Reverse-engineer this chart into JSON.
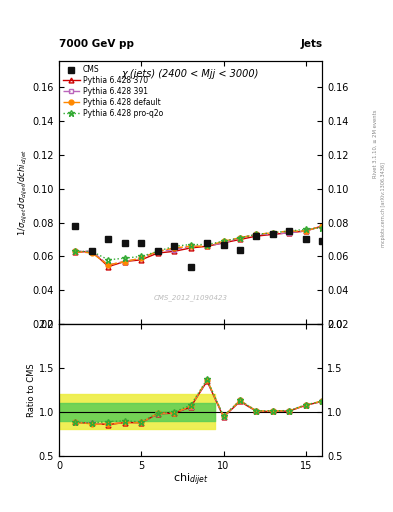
{
  "title_main": "χ (jets) (2400 < Mjj < 3000)",
  "header_left": "7000 GeV pp",
  "header_right": "Jets",
  "watermark": "CMS_2012_I1090423",
  "rivet_label": "Rivet 3.1.10, ≥ 2M events",
  "mcplots_label": "mcplots.cern.ch [arXiv:1306.3436]",
  "xlabel": "chi$_{dijet}$",
  "ylabel_ratio": "Ratio to CMS",
  "ylim_main": [
    0.02,
    0.175
  ],
  "ylim_ratio": [
    0.5,
    2.0
  ],
  "xlim": [
    0,
    16
  ],
  "yticks_main": [
    0.02,
    0.04,
    0.06,
    0.08,
    0.1,
    0.12,
    0.14,
    0.16
  ],
  "yticks_ratio": [
    0.5,
    1.0,
    1.5,
    2.0
  ],
  "xticks": [
    0,
    5,
    10,
    15
  ],
  "cms_x": [
    1,
    2,
    3,
    4,
    5,
    6,
    7,
    8,
    9,
    10,
    11,
    12,
    13,
    14,
    15,
    16
  ],
  "cms_y": [
    0.078,
    0.063,
    0.07,
    0.068,
    0.068,
    0.063,
    0.066,
    0.054,
    0.068,
    0.067,
    0.064,
    0.072,
    0.073,
    0.075,
    0.07,
    0.069
  ],
  "p370_x": [
    1,
    2,
    3,
    4,
    5,
    6,
    7,
    8,
    9,
    10,
    11,
    12,
    13,
    14,
    15,
    16
  ],
  "p370_y": [
    0.0625,
    0.063,
    0.054,
    0.057,
    0.058,
    0.062,
    0.063,
    0.065,
    0.066,
    0.068,
    0.07,
    0.072,
    0.073,
    0.074,
    0.075,
    0.078
  ],
  "p391_x": [
    1,
    2,
    3,
    4,
    5,
    6,
    7,
    8,
    9,
    10,
    11,
    12,
    13,
    14,
    15,
    16
  ],
  "p391_y": [
    0.063,
    0.063,
    0.055,
    0.057,
    0.059,
    0.063,
    0.064,
    0.066,
    0.066,
    0.068,
    0.071,
    0.073,
    0.073,
    0.074,
    0.075,
    0.078
  ],
  "pdef_x": [
    1,
    2,
    3,
    4,
    5,
    6,
    7,
    8,
    9,
    10,
    11,
    12,
    13,
    14,
    15,
    16
  ],
  "pdef_y": [
    0.063,
    0.062,
    0.055,
    0.057,
    0.059,
    0.063,
    0.065,
    0.066,
    0.066,
    0.069,
    0.071,
    0.073,
    0.074,
    0.075,
    0.075,
    0.078
  ],
  "pq2o_x": [
    1,
    2,
    3,
    4,
    5,
    6,
    7,
    8,
    9,
    10,
    11,
    12,
    13,
    14,
    15,
    16
  ],
  "pq2o_y": [
    0.063,
    0.063,
    0.058,
    0.059,
    0.06,
    0.063,
    0.066,
    0.067,
    0.067,
    0.069,
    0.071,
    0.073,
    0.074,
    0.075,
    0.076,
    0.077
  ],
  "ratio370_y": [
    0.88,
    0.87,
    0.855,
    0.878,
    0.876,
    0.978,
    0.985,
    1.055,
    1.35,
    0.94,
    1.12,
    1.005,
    1.005,
    1.01,
    1.075,
    1.12
  ],
  "ratio391_y": [
    0.882,
    0.87,
    0.857,
    0.882,
    0.879,
    0.981,
    0.988,
    1.06,
    1.36,
    0.945,
    1.13,
    1.008,
    1.008,
    1.012,
    1.078,
    1.12
  ],
  "ratiodef_y": [
    0.882,
    0.862,
    0.857,
    0.882,
    0.879,
    0.984,
    0.99,
    1.063,
    1.365,
    0.948,
    1.13,
    1.01,
    1.01,
    1.013,
    1.078,
    1.125
  ],
  "ratioq2o_y": [
    0.882,
    0.872,
    0.89,
    0.897,
    0.885,
    0.984,
    1.0,
    1.075,
    1.37,
    0.953,
    1.13,
    1.012,
    1.012,
    1.015,
    1.082,
    1.12
  ],
  "band_green_lo": 0.9,
  "band_green_hi": 1.1,
  "band_yellow_lo": 0.8,
  "band_yellow_hi": 1.2,
  "band_x_start": 0,
  "band_x_end": 9.5,
  "color_cms": "#111111",
  "color_p370": "#cc0000",
  "color_p391": "#bb66bb",
  "color_pdef": "#ff8800",
  "color_pq2o": "#33aa33",
  "color_green_band": "#55cc55",
  "color_yellow_band": "#eeee44",
  "bg_color": "#ffffff"
}
